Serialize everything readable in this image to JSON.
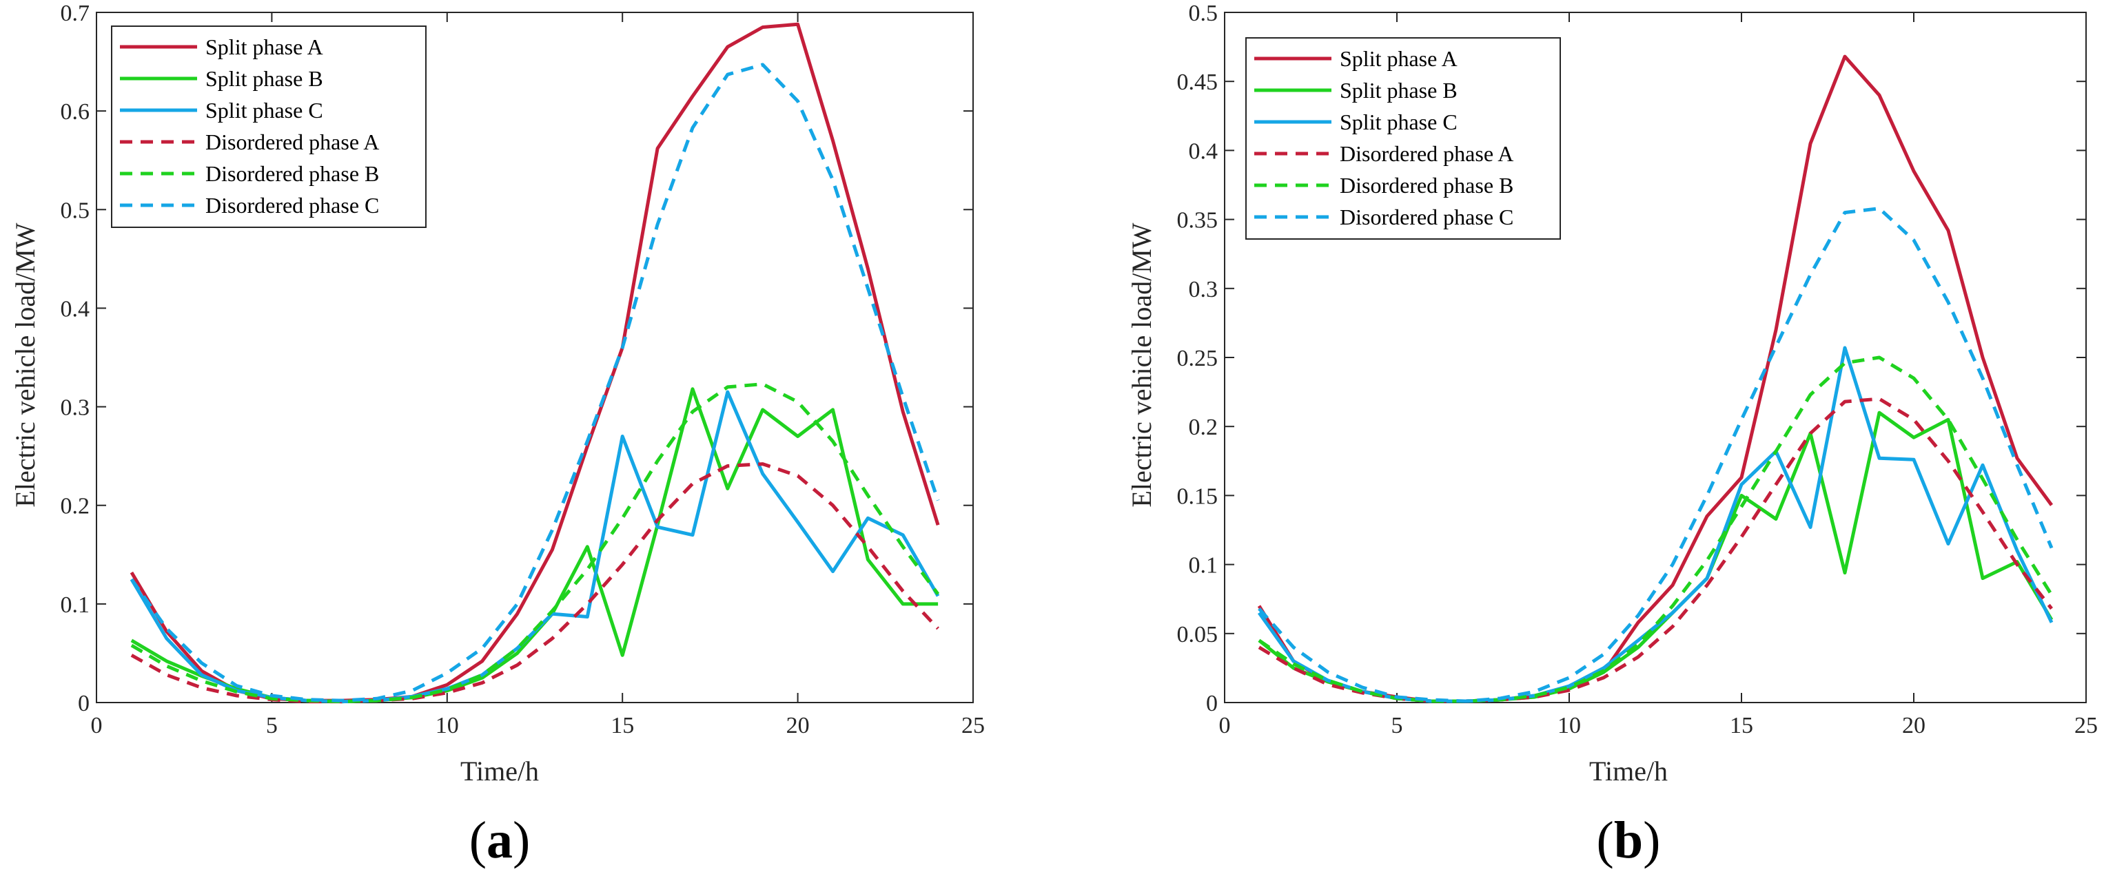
{
  "colors": {
    "phase_a": "#C41E3A",
    "phase_b": "#1FD21F",
    "phase_c": "#15A6E6",
    "axis": "#262626"
  },
  "legend": [
    {
      "label": "Split phase A",
      "color_key": "phase_a",
      "dashed": false
    },
    {
      "label": "Split phase B",
      "color_key": "phase_b",
      "dashed": false
    },
    {
      "label": "Split phase C",
      "color_key": "phase_c",
      "dashed": false
    },
    {
      "label": "Disordered phase A",
      "color_key": "phase_a",
      "dashed": true
    },
    {
      "label": "Disordered phase B",
      "color_key": "phase_b",
      "dashed": true
    },
    {
      "label": "Disordered phase C",
      "color_key": "phase_c",
      "dashed": true
    }
  ],
  "chart_data": [
    {
      "type": "line",
      "panel": "a",
      "xlabel": "Time/h",
      "ylabel": "Electric vehicle load/MW",
      "xlim": [
        0,
        25
      ],
      "ylim": [
        0,
        0.7
      ],
      "xticks": [
        0,
        5,
        10,
        15,
        20,
        25
      ],
      "yticks": [
        0,
        0.1,
        0.2,
        0.3,
        0.4,
        0.5,
        0.6,
        0.7
      ],
      "ytick_labels": [
        "0",
        "0.1",
        "0.2",
        "0.3",
        "0.4",
        "0.5",
        "0.6",
        "0.7"
      ],
      "x": [
        1,
        2,
        3,
        4,
        5,
        6,
        7,
        8,
        9,
        10,
        11,
        12,
        13,
        14,
        15,
        16,
        17,
        18,
        19,
        20,
        21,
        22,
        23,
        24
      ],
      "series": [
        {
          "name": "Split phase A",
          "color_key": "phase_a",
          "dashed": false,
          "values": [
            0.132,
            0.072,
            0.032,
            0.012,
            0.004,
            0.002,
            0.002,
            0.003,
            0.006,
            0.018,
            0.042,
            0.09,
            0.155,
            0.26,
            0.36,
            0.562,
            0.615,
            0.665,
            0.685,
            0.688,
            0.57,
            0.44,
            0.295,
            0.18
          ]
        },
        {
          "name": "Split phase B",
          "color_key": "phase_b",
          "dashed": false,
          "values": [
            0.063,
            0.042,
            0.027,
            0.014,
            0.005,
            0.002,
            0.001,
            0.002,
            0.005,
            0.012,
            0.025,
            0.05,
            0.09,
            0.158,
            0.048,
            0.18,
            0.318,
            0.217,
            0.297,
            0.27,
            0.297,
            0.145,
            0.1,
            0.1
          ]
        },
        {
          "name": "Split phase C",
          "color_key": "phase_c",
          "dashed": false,
          "values": [
            0.125,
            0.065,
            0.028,
            0.012,
            0.005,
            0.002,
            0.001,
            0.002,
            0.006,
            0.014,
            0.028,
            0.055,
            0.09,
            0.087,
            0.27,
            0.178,
            0.17,
            0.315,
            0.232,
            0.183,
            0.133,
            0.187,
            0.17,
            0.108
          ]
        },
        {
          "name": "Disordered phase A",
          "color_key": "phase_a",
          "dashed": true,
          "values": [
            0.048,
            0.028,
            0.015,
            0.007,
            0.003,
            0.001,
            0.001,
            0.002,
            0.004,
            0.01,
            0.02,
            0.038,
            0.065,
            0.1,
            0.14,
            0.185,
            0.222,
            0.24,
            0.242,
            0.23,
            0.2,
            0.158,
            0.113,
            0.075
          ]
        },
        {
          "name": "Disordered phase B",
          "color_key": "phase_b",
          "dashed": true,
          "values": [
            0.058,
            0.037,
            0.022,
            0.011,
            0.004,
            0.002,
            0.001,
            0.002,
            0.005,
            0.013,
            0.028,
            0.055,
            0.093,
            0.135,
            0.187,
            0.245,
            0.295,
            0.32,
            0.323,
            0.305,
            0.265,
            0.21,
            0.158,
            0.11
          ]
        },
        {
          "name": "Disordered phase C",
          "color_key": "phase_c",
          "dashed": true,
          "values": [
            0.125,
            0.075,
            0.04,
            0.017,
            0.007,
            0.003,
            0.002,
            0.004,
            0.012,
            0.03,
            0.055,
            0.1,
            0.175,
            0.265,
            0.36,
            0.485,
            0.583,
            0.637,
            0.647,
            0.61,
            0.53,
            0.42,
            0.31,
            0.205
          ]
        }
      ]
    },
    {
      "type": "line",
      "panel": "b",
      "xlabel": "Time/h",
      "ylabel": "Electric vehicle load/MW",
      "xlim": [
        0,
        25
      ],
      "ylim": [
        0,
        0.5
      ],
      "xticks": [
        0,
        5,
        10,
        15,
        20,
        25
      ],
      "yticks": [
        0,
        0.05,
        0.1,
        0.15,
        0.2,
        0.25,
        0.3,
        0.35,
        0.4,
        0.45,
        0.5
      ],
      "ytick_labels": [
        "0",
        "0.05",
        "0.1",
        "0.15",
        "0.2",
        "0.25",
        "0.3",
        "0.35",
        "0.4",
        "0.45",
        "0.5"
      ],
      "x": [
        1,
        2,
        3,
        4,
        5,
        6,
        7,
        8,
        9,
        10,
        11,
        12,
        13,
        14,
        15,
        16,
        17,
        18,
        19,
        20,
        21,
        22,
        23,
        24
      ],
      "series": [
        {
          "name": "Split phase A",
          "color_key": "phase_a",
          "dashed": false,
          "values": [
            0.07,
            0.03,
            0.015,
            0.008,
            0.004,
            0.001,
            0.001,
            0.002,
            0.005,
            0.01,
            0.022,
            0.058,
            0.085,
            0.135,
            0.163,
            0.27,
            0.405,
            0.468,
            0.44,
            0.385,
            0.342,
            0.25,
            0.177,
            0.143
          ]
        },
        {
          "name": "Split phase B",
          "color_key": "phase_b",
          "dashed": false,
          "values": [
            0.045,
            0.025,
            0.015,
            0.008,
            0.003,
            0.001,
            0.001,
            0.002,
            0.004,
            0.01,
            0.022,
            0.04,
            0.065,
            0.09,
            0.15,
            0.133,
            0.195,
            0.094,
            0.21,
            0.192,
            0.205,
            0.09,
            0.102,
            0.06
          ]
        },
        {
          "name": "Split phase C",
          "color_key": "phase_c",
          "dashed": false,
          "values": [
            0.065,
            0.03,
            0.016,
            0.008,
            0.003,
            0.001,
            0.001,
            0.002,
            0.005,
            0.012,
            0.025,
            0.045,
            0.065,
            0.09,
            0.158,
            0.182,
            0.127,
            0.257,
            0.177,
            0.176,
            0.115,
            0.172,
            0.11,
            0.058
          ]
        },
        {
          "name": "Disordered phase A",
          "color_key": "phase_a",
          "dashed": true,
          "values": [
            0.04,
            0.025,
            0.013,
            0.007,
            0.003,
            0.001,
            0.001,
            0.002,
            0.004,
            0.009,
            0.018,
            0.033,
            0.055,
            0.085,
            0.12,
            0.158,
            0.195,
            0.218,
            0.22,
            0.205,
            0.175,
            0.138,
            0.1,
            0.068
          ]
        },
        {
          "name": "Disordered phase B",
          "color_key": "phase_b",
          "dashed": true,
          "values": [
            0.045,
            0.028,
            0.016,
            0.008,
            0.003,
            0.001,
            0.001,
            0.002,
            0.005,
            0.011,
            0.023,
            0.042,
            0.07,
            0.103,
            0.142,
            0.182,
            0.223,
            0.246,
            0.25,
            0.235,
            0.205,
            0.162,
            0.118,
            0.078
          ]
        },
        {
          "name": "Disordered phase C",
          "color_key": "phase_c",
          "dashed": true,
          "values": [
            0.068,
            0.04,
            0.022,
            0.011,
            0.004,
            0.002,
            0.001,
            0.003,
            0.008,
            0.018,
            0.035,
            0.063,
            0.1,
            0.15,
            0.205,
            0.258,
            0.31,
            0.355,
            0.358,
            0.335,
            0.29,
            0.235,
            0.172,
            0.112
          ]
        }
      ]
    }
  ],
  "panel_labels": [
    {
      "open": "(",
      "letter": "a",
      "close": ")"
    },
    {
      "open": "(",
      "letter": "b",
      "close": ")"
    }
  ]
}
